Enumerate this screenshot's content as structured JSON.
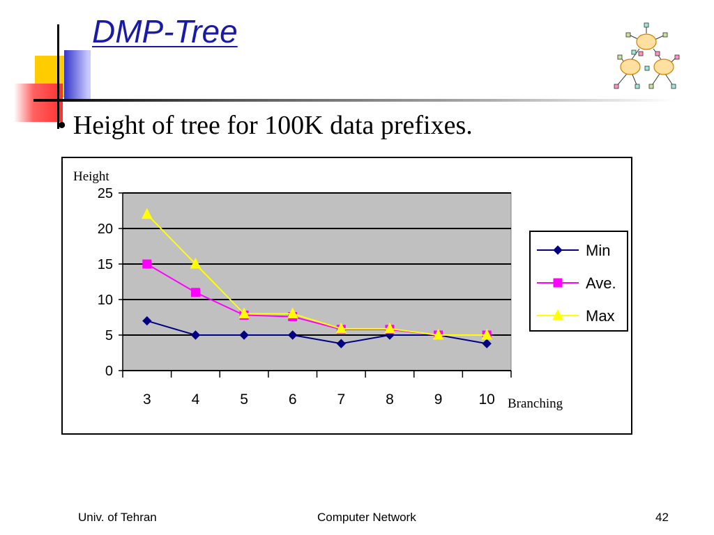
{
  "slide": {
    "title": "DMP-Tree",
    "bullet_mark": "•",
    "bullet_text": "Height of tree for 100K data prefixes."
  },
  "footer": {
    "left": "Univ. of Tehran",
    "center": "Computer Network",
    "page_number": "42"
  },
  "colors": {
    "title": "#1a1aa8",
    "plot_background": "#c0c0c0",
    "min": "#000080",
    "ave": "#ff00ff",
    "max": "#ffff00"
  },
  "chart_data": {
    "type": "line",
    "title": "",
    "ylabel": "Height",
    "xlabel": "Branching",
    "categories": [
      "3",
      "4",
      "5",
      "6",
      "7",
      "8",
      "9",
      "10"
    ],
    "yticks": [
      "0",
      "5",
      "10",
      "15",
      "20",
      "25"
    ],
    "ylim": [
      0,
      25
    ],
    "grid": "horizontal",
    "legend_position": "right",
    "series": [
      {
        "name": "Min",
        "marker": "diamond",
        "values": [
          7,
          5,
          5,
          5,
          3.8,
          5,
          5,
          3.8
        ]
      },
      {
        "name": "Ave.",
        "marker": "square",
        "values": [
          15,
          11,
          7.8,
          7.6,
          5.8,
          5.8,
          5,
          5
        ]
      },
      {
        "name": "Max",
        "marker": "triangle",
        "values": [
          22,
          15,
          8,
          8,
          5.9,
          5.9,
          5,
          5
        ]
      }
    ]
  }
}
